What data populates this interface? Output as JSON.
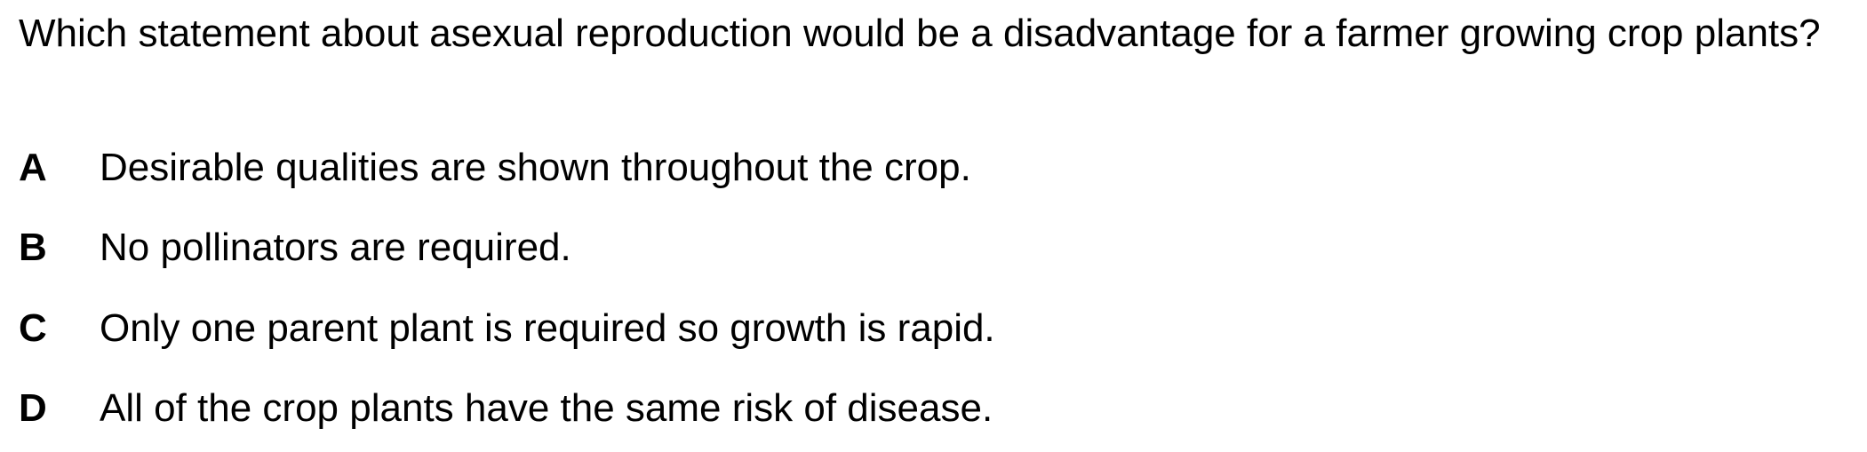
{
  "question": {
    "text": "Which statement about asexual reproduction would be a disadvantage for a farmer growing crop plants?"
  },
  "options": [
    {
      "letter": "A",
      "text": "Desirable qualities are shown throughout the crop."
    },
    {
      "letter": "B",
      "text": "No pollinators are required."
    },
    {
      "letter": "C",
      "text": "Only one parent plant is required so growth is rapid."
    },
    {
      "letter": "D",
      "text": "All of the crop plants have the same risk of disease."
    }
  ]
}
